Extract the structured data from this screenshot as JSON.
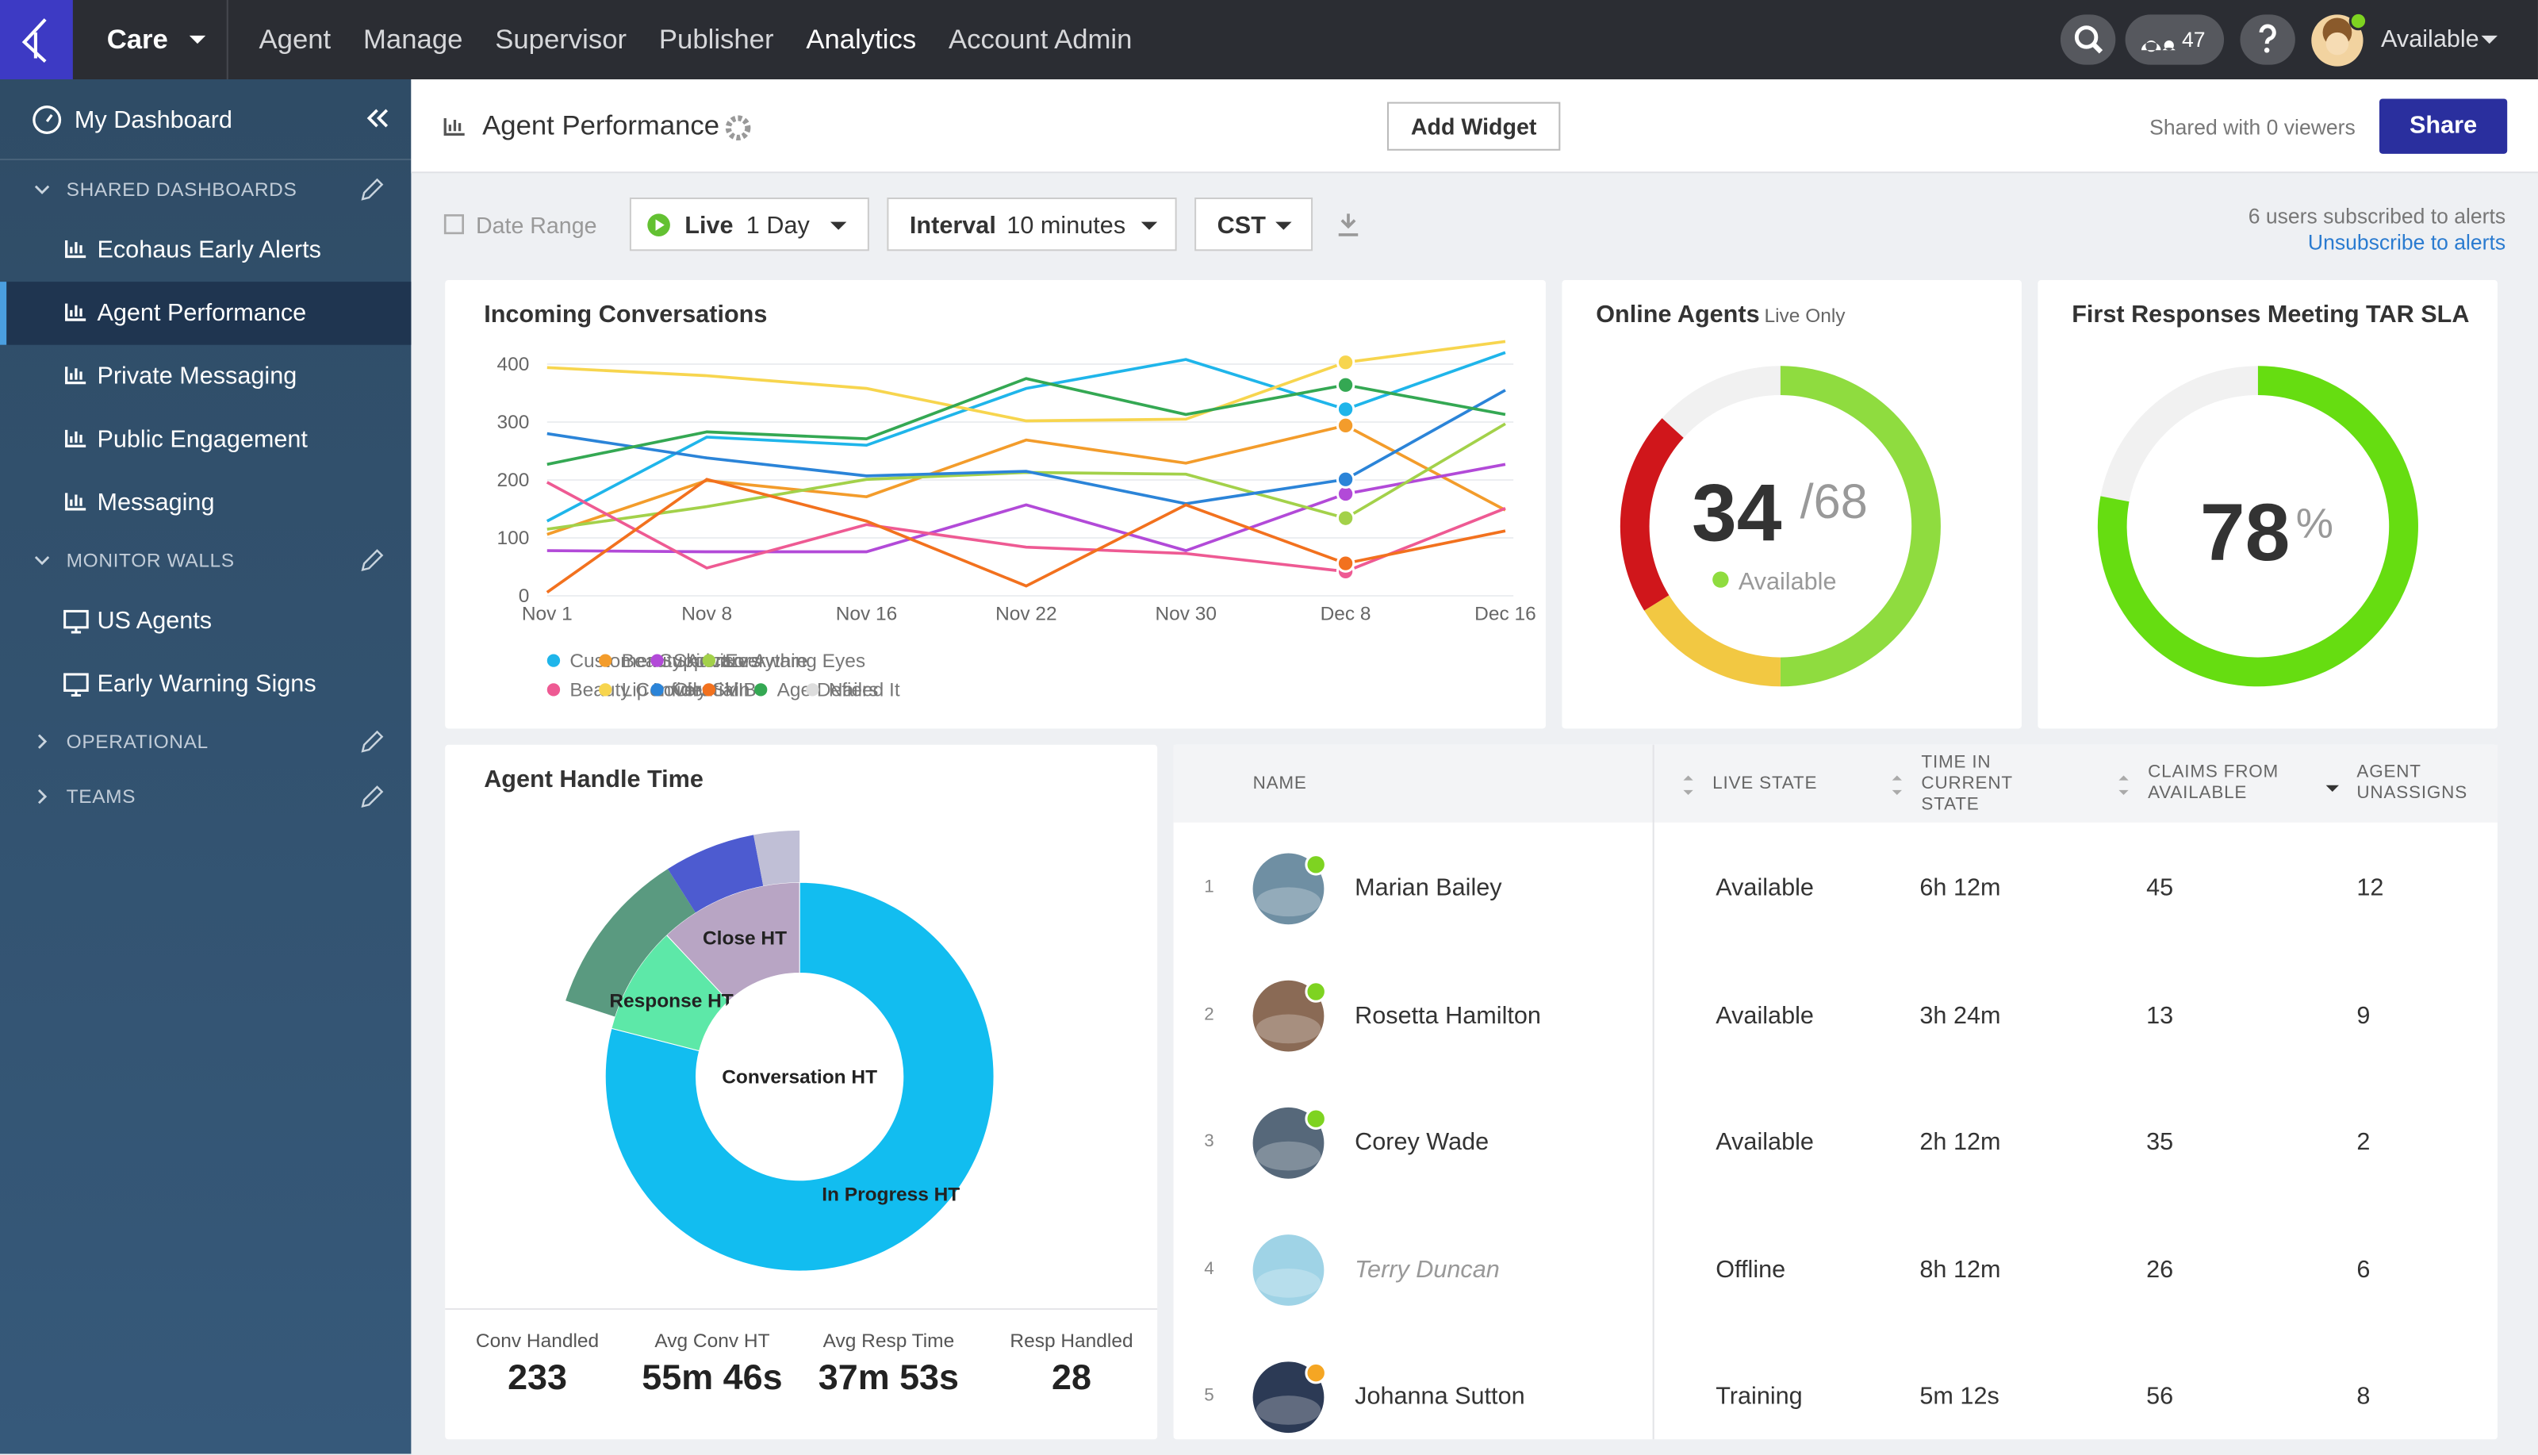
{
  "nav": {
    "brand": "Care",
    "menu": [
      {
        "label": "Agent"
      },
      {
        "label": "Manage"
      },
      {
        "label": "Supervisor"
      },
      {
        "label": "Publisher"
      },
      {
        "label": "Analytics",
        "active": true
      },
      {
        "label": "Account Admin"
      }
    ],
    "notifications": 47,
    "status": "Available"
  },
  "sidebar": {
    "home": "My Dashboard",
    "sections": [
      {
        "title": "SHARED DASHBOARDS",
        "expanded": true,
        "items": [
          {
            "label": "Ecohaus Early Alerts"
          },
          {
            "label": "Agent Performance",
            "active": true
          },
          {
            "label": "Private Messaging"
          },
          {
            "label": "Public Engagement"
          },
          {
            "label": "Messaging"
          }
        ]
      },
      {
        "title": "MONITOR WALLS",
        "expanded": true,
        "items": [
          {
            "label": "US Agents"
          },
          {
            "label": "Early Warning Signs"
          }
        ]
      },
      {
        "title": "OPERATIONAL",
        "expanded": false,
        "items": []
      },
      {
        "title": "TEAMS",
        "expanded": false,
        "items": []
      }
    ]
  },
  "header": {
    "title": "Agent Performance",
    "add_widget": "Add Widget",
    "shared": "Shared with 0 viewers",
    "share": "Share"
  },
  "filters": {
    "date_range": "Date Range",
    "mode": "Live",
    "period": "1 Day",
    "interval_label": "Interval",
    "interval": "10 minutes",
    "timezone": "CST",
    "subscribers": "6 users subscribed to alerts",
    "unsubscribe": "Unsubscribe to alerts"
  },
  "chart_data": [
    {
      "type": "line",
      "title": "Incoming Conversations",
      "categories": [
        "Nov 1",
        "Nov 8",
        "Nov 16",
        "Nov 22",
        "Nov 30",
        "Dec 8",
        "Dec 16"
      ],
      "series": [
        {
          "name": "Customer Support",
          "color": "#1fb5ea",
          "values": [
            129,
            274,
            260,
            358,
            408,
            322,
            420
          ]
        },
        {
          "name": "Beauty Advisors",
          "color": "#f39c2b",
          "values": [
            106,
            199,
            171,
            269,
            229,
            294,
            148
          ]
        },
        {
          "name": "Skincare Aware",
          "color": "#b24ad8",
          "values": [
            78,
            76,
            76,
            157,
            78,
            176,
            227
          ]
        },
        {
          "name": "Everything Eyes",
          "color": "#a3d14a",
          "values": [
            115,
            154,
            201,
            213,
            210,
            134,
            297
          ]
        },
        {
          "name": "Beauty Confidential",
          "color": "#ee5a93",
          "values": [
            196,
            48,
            123,
            84,
            73,
            42,
            151
          ]
        },
        {
          "name": "Lip Lovers",
          "color": "#f7d54e",
          "values": [
            394,
            380,
            358,
            302,
            305,
            403,
            439
          ]
        },
        {
          "name": "Oily Skin",
          "color": "#2b84d8",
          "values": [
            280,
            238,
            207,
            215,
            159,
            201,
            355
          ]
        },
        {
          "name": "VIB",
          "color": "#f2711e",
          "values": [
            6,
            201,
            129,
            17,
            157,
            56,
            112
          ]
        },
        {
          "name": "Age Defiers",
          "color": "#34a853",
          "values": [
            227,
            283,
            271,
            375,
            313,
            364,
            313
          ]
        },
        {
          "name": "Nailed It",
          "color": "#dddddd"
        }
      ],
      "ylim": [
        0,
        450
      ],
      "yticks": [
        0,
        100,
        200,
        300,
        400
      ],
      "grid": true
    },
    {
      "type": "donut",
      "title": "Online Agents",
      "subtitle": "Live Only",
      "value": 34,
      "total": 68,
      "total_label": "/68",
      "status": "Available",
      "status_color": "#8fdc3f",
      "values": [
        34,
        11,
        14
      ],
      "colors": [
        "#8fdc3f",
        "#f2c842",
        "#d0161b"
      ]
    },
    {
      "type": "gauge",
      "title": "First Responses Meeting TAR SLA",
      "value": 78,
      "unit": "%",
      "range": [
        0,
        100
      ],
      "color": "#66dd11"
    },
    {
      "type": "sunburst",
      "title": "Agent Handle Time",
      "center": "Conversation HT",
      "segments": [
        {
          "name": "In Progress HT",
          "value": 79,
          "color": "#12bdf0"
        },
        {
          "name": "Response HT",
          "value": 9,
          "color": "#5de8a8"
        },
        {
          "name": "Close HT",
          "value": 12,
          "color": "#b8a5c4"
        }
      ],
      "outer": [
        {
          "name": null,
          "value": 11,
          "color": "#5a9a80"
        },
        {
          "name": null,
          "value": 6,
          "color": "#4d5bd0"
        },
        {
          "name": null,
          "value": 3,
          "color": "#c0bfd6"
        }
      ]
    }
  ],
  "handle_stats": [
    {
      "label": "Conv Handled",
      "value": 233
    },
    {
      "label": "Avg Conv HT",
      "value": "55m 46s"
    },
    {
      "label": "Avg Resp Time",
      "value": "37m 53s"
    },
    {
      "label": "Resp Handled",
      "value": 28
    }
  ],
  "agents_table": {
    "columns": [
      "NAME",
      "LIVE STATE",
      "TIME IN CURRENT STATE",
      "CLAIMS FROM AVAILABLE",
      "AGENT UNASSIGNS"
    ],
    "rows": [
      [
        1,
        "Marian Bailey",
        "Available",
        "6h 12m",
        45,
        12
      ],
      [
        2,
        "Rosetta Hamilton",
        "Available",
        "3h 24m",
        13,
        9
      ],
      [
        3,
        "Corey Wade",
        "Available",
        "2h 12m",
        35,
        2
      ],
      [
        4,
        "Terry Duncan",
        "Offline",
        "8h 12m",
        26,
        6
      ],
      [
        5,
        "Johanna Sutton",
        "Training",
        "5m 12s",
        56,
        8
      ]
    ],
    "status_colors": [
      "#7ed321",
      "#7ed321",
      "#7ed321",
      null,
      "#f5a623"
    ]
  }
}
